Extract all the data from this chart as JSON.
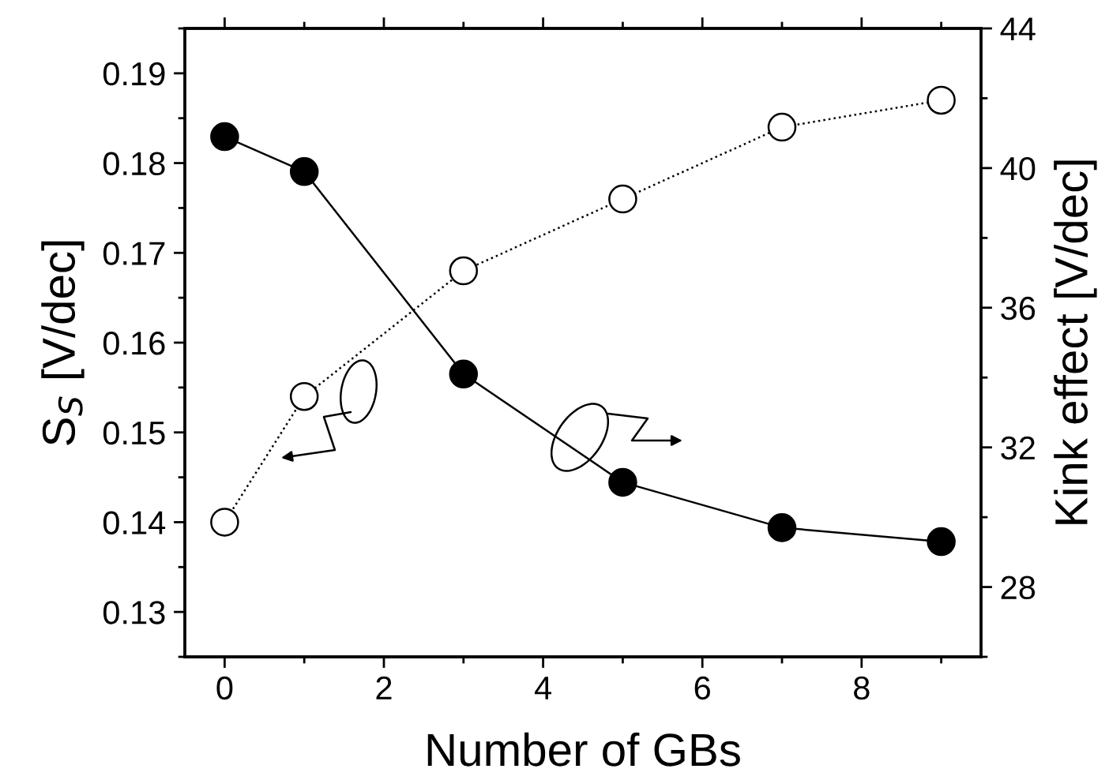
{
  "chart_data": {
    "type": "line",
    "xlabel": "Number of GBs",
    "ylabel": "S$_{S}$ [V/dec]",
    "y2label": "Kink effect [V/dec]",
    "xlim": [
      -0.5,
      9.5
    ],
    "xticks": [
      0,
      2,
      4,
      6,
      8
    ],
    "ylim": [
      0.125,
      0.195
    ],
    "yticks": [
      0.13,
      0.14,
      0.15,
      0.16,
      0.17,
      0.18,
      0.19
    ],
    "y2lim": [
      26,
      44
    ],
    "y2ticks": [
      28,
      32,
      36,
      40,
      44
    ],
    "grid": false,
    "legend": false,
    "marker": "circle",
    "series": [
      {
        "x": [
          0,
          1,
          3,
          5,
          7,
          9
        ],
        "values": [
          0.14,
          0.154,
          0.168,
          0.176,
          0.184,
          0.187
        ],
        "color": "#000000",
        "colors": [
          "#ffffff",
          "#ffffff",
          "#ffffff",
          "#ffffff",
          "#ffffff",
          "#ffffff"
        ],
        "line_style": "dotted"
      },
      {
        "x": [
          0,
          1,
          3,
          5,
          7,
          9
        ],
        "values": [
          40.9,
          39.9,
          34.1,
          31.0,
          29.7,
          29.3
        ],
        "color": "#000000",
        "colors": [
          "#000000",
          "#000000",
          "#000000",
          "#000000",
          "#000000",
          "#000000"
        ],
        "line_style": "solid",
        "axis": "y2"
      }
    ]
  }
}
